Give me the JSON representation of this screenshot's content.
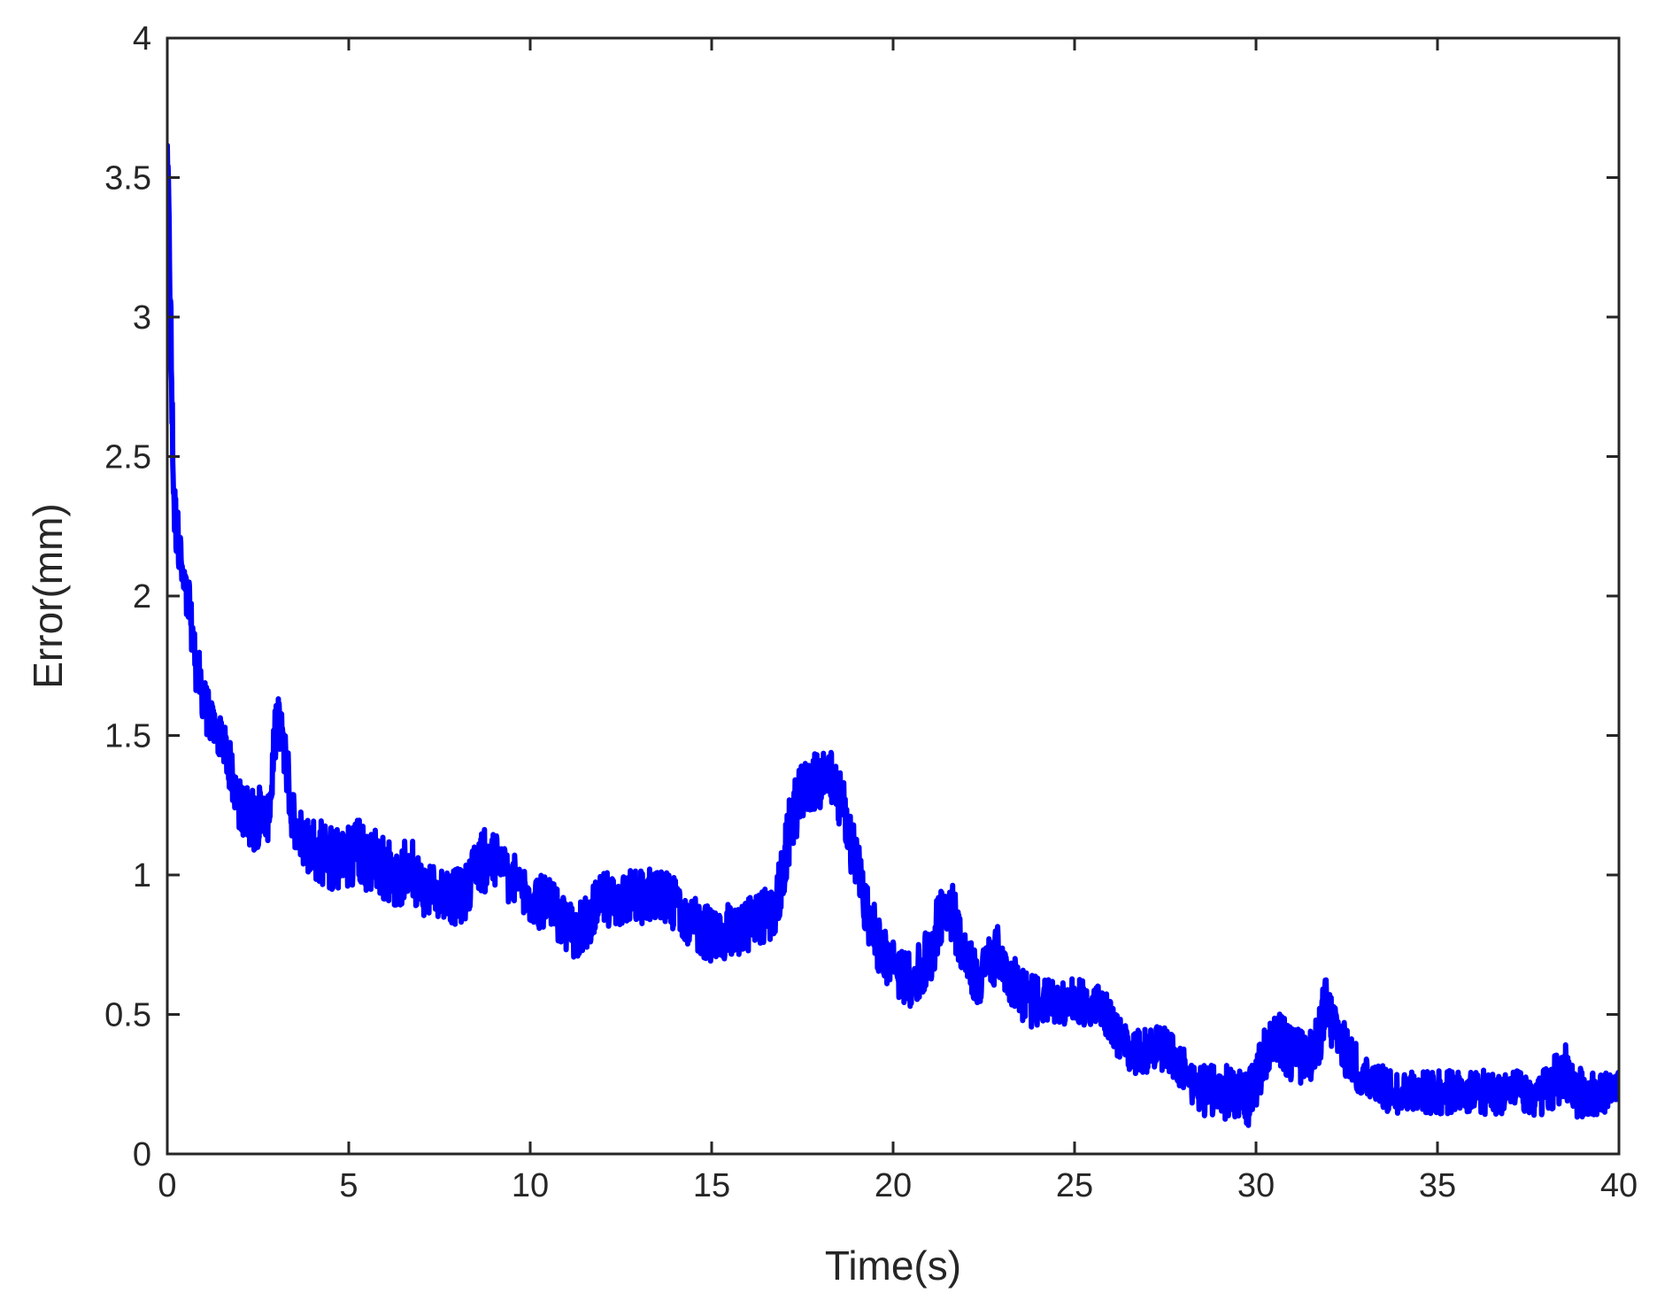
{
  "chart_data": {
    "type": "line",
    "title": "",
    "xlabel": "Time(s)",
    "ylabel": "Error(mm)",
    "xlim": [
      0,
      40
    ],
    "ylim": [
      0,
      4
    ],
    "xticks": [
      0,
      5,
      10,
      15,
      20,
      25,
      30,
      35,
      40
    ],
    "yticks": [
      0,
      0.5,
      1,
      1.5,
      2,
      2.5,
      3,
      3.5,
      4
    ],
    "xtick_labels": [
      "0",
      "5",
      "10",
      "15",
      "20",
      "25",
      "30",
      "35",
      "40"
    ],
    "ytick_labels": [
      "0",
      "0.5",
      "1",
      "1.5",
      "2",
      "2.5",
      "3",
      "3.5",
      "4"
    ],
    "grid": false,
    "line_color": "#0000ff",
    "series": [
      {
        "x": [
          0.0,
          0.05,
          0.1,
          0.15,
          0.2,
          0.3,
          0.4,
          0.5,
          0.6,
          0.7,
          0.8,
          0.9,
          1.0,
          1.2,
          1.4,
          1.6,
          1.8,
          2.0,
          2.2,
          2.4,
          2.6,
          2.8,
          3.0,
          3.2,
          3.4,
          3.6,
          3.8,
          4.0,
          4.3,
          4.6,
          4.9,
          5.2,
          5.5,
          5.8,
          6.1,
          6.4,
          6.7,
          7.0,
          7.3,
          7.6,
          7.9,
          8.2,
          8.5,
          8.8,
          9.1,
          9.4,
          9.7,
          10.0,
          10.3,
          10.6,
          10.9,
          11.2,
          11.5,
          11.8,
          12.1,
          12.4,
          12.7,
          13.0,
          13.3,
          13.6,
          13.9,
          14.2,
          14.5,
          14.8,
          15.1,
          15.4,
          15.7,
          16.0,
          16.3,
          16.6,
          16.9,
          17.2,
          17.5,
          17.8,
          18.1,
          18.4,
          18.7,
          19.0,
          19.3,
          19.6,
          19.9,
          20.2,
          20.5,
          20.8,
          21.1,
          21.4,
          21.7,
          22.0,
          22.3,
          22.6,
          22.9,
          23.2,
          23.5,
          23.8,
          24.1,
          24.4,
          24.7,
          25.0,
          25.3,
          25.6,
          25.9,
          26.2,
          26.5,
          26.8,
          27.1,
          27.4,
          27.7,
          28.0,
          28.3,
          28.6,
          28.9,
          29.2,
          29.5,
          29.8,
          30.1,
          30.4,
          30.7,
          31.0,
          31.3,
          31.6,
          31.9,
          32.2,
          32.5,
          32.8,
          33.1,
          33.4,
          33.7,
          34.0,
          34.3,
          34.6,
          34.9,
          35.2,
          35.5,
          35.8,
          36.1,
          36.4,
          36.7,
          37.0,
          37.3,
          37.6,
          37.9,
          38.2,
          38.5,
          38.8,
          39.1,
          39.4,
          39.7,
          40.0
        ],
        "values": [
          3.6,
          3.3,
          2.9,
          2.5,
          2.3,
          2.2,
          2.1,
          2.0,
          1.95,
          1.85,
          1.75,
          1.7,
          1.62,
          1.55,
          1.5,
          1.45,
          1.35,
          1.25,
          1.22,
          1.2,
          1.22,
          1.2,
          1.55,
          1.5,
          1.25,
          1.15,
          1.12,
          1.1,
          1.08,
          1.05,
          1.05,
          1.1,
          1.05,
          1.05,
          1.02,
          0.98,
          1.05,
          0.95,
          0.95,
          0.95,
          0.92,
          0.93,
          1.05,
          1.05,
          1.05,
          1.0,
          0.95,
          0.92,
          0.9,
          0.88,
          0.83,
          0.8,
          0.82,
          0.88,
          0.92,
          0.9,
          0.92,
          0.92,
          0.93,
          0.92,
          0.9,
          0.88,
          0.82,
          0.8,
          0.78,
          0.8,
          0.78,
          0.82,
          0.85,
          0.85,
          0.95,
          1.2,
          1.3,
          1.33,
          1.35,
          1.33,
          1.2,
          1.05,
          0.85,
          0.75,
          0.68,
          0.65,
          0.62,
          0.66,
          0.75,
          0.9,
          0.85,
          0.7,
          0.62,
          0.68,
          0.72,
          0.65,
          0.58,
          0.55,
          0.55,
          0.55,
          0.54,
          0.55,
          0.54,
          0.53,
          0.5,
          0.42,
          0.38,
          0.36,
          0.38,
          0.38,
          0.35,
          0.3,
          0.25,
          0.22,
          0.22,
          0.22,
          0.22,
          0.2,
          0.3,
          0.42,
          0.4,
          0.35,
          0.35,
          0.35,
          0.52,
          0.45,
          0.35,
          0.3,
          0.28,
          0.25,
          0.22,
          0.22,
          0.22,
          0.22,
          0.22,
          0.22,
          0.22,
          0.22,
          0.22,
          0.22,
          0.22,
          0.22,
          0.22,
          0.2,
          0.22,
          0.25,
          0.3,
          0.22,
          0.22,
          0.22,
          0.22,
          0.22
        ],
        "noise": [
          0.05,
          0.08,
          0.15,
          0.15,
          0.12,
          0.1,
          0.1,
          0.1,
          0.1,
          0.1,
          0.1,
          0.1,
          0.1,
          0.08,
          0.08,
          0.08,
          0.1,
          0.1,
          0.1,
          0.12,
          0.1,
          0.08,
          0.1,
          0.12,
          0.1,
          0.1,
          0.1,
          0.12,
          0.12,
          0.12,
          0.12,
          0.12,
          0.12,
          0.12,
          0.12,
          0.1,
          0.12,
          0.1,
          0.1,
          0.1,
          0.1,
          0.1,
          0.1,
          0.12,
          0.1,
          0.1,
          0.1,
          0.1,
          0.1,
          0.1,
          0.1,
          0.1,
          0.1,
          0.1,
          0.1,
          0.1,
          0.1,
          0.1,
          0.1,
          0.1,
          0.1,
          0.1,
          0.1,
          0.1,
          0.1,
          0.1,
          0.1,
          0.1,
          0.1,
          0.1,
          0.12,
          0.12,
          0.1,
          0.1,
          0.12,
          0.1,
          0.12,
          0.12,
          0.12,
          0.1,
          0.1,
          0.1,
          0.1,
          0.12,
          0.12,
          0.1,
          0.12,
          0.1,
          0.1,
          0.1,
          0.1,
          0.1,
          0.1,
          0.1,
          0.08,
          0.08,
          0.08,
          0.08,
          0.08,
          0.08,
          0.08,
          0.08,
          0.08,
          0.08,
          0.08,
          0.08,
          0.08,
          0.08,
          0.08,
          0.1,
          0.1,
          0.1,
          0.1,
          0.1,
          0.1,
          0.1,
          0.1,
          0.1,
          0.1,
          0.1,
          0.12,
          0.1,
          0.1,
          0.1,
          0.08,
          0.08,
          0.08,
          0.08,
          0.08,
          0.08,
          0.08,
          0.08,
          0.08,
          0.08,
          0.08,
          0.08,
          0.08,
          0.08,
          0.08,
          0.08,
          0.08,
          0.1,
          0.1,
          0.1,
          0.08,
          0.08,
          0.08,
          0.08
        ]
      }
    ]
  }
}
